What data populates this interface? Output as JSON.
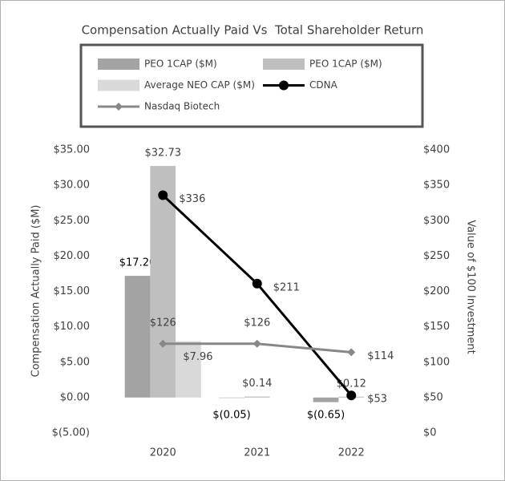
{
  "chart_data": {
    "type": "bar",
    "title": "Compensation Actually Paid Vs  Total Shareholder Return",
    "categories": [
      "2020",
      "2021",
      "2022"
    ],
    "y_label": "Compensation Actually Paid ($M)",
    "y2_label": "Value of $100 Investment",
    "ylim": [
      -5,
      35
    ],
    "yticks": [
      {
        "value": -5,
        "label": "$(5.00)"
      },
      {
        "value": 0,
        "label": "$0.00"
      },
      {
        "value": 5,
        "label": "$5.00"
      },
      {
        "value": 10,
        "label": "$10.00"
      },
      {
        "value": 15,
        "label": "$15.00"
      },
      {
        "value": 20,
        "label": "$20.00"
      },
      {
        "value": 25,
        "label": "$25.00"
      },
      {
        "value": 30,
        "label": "$30.00"
      },
      {
        "value": 35,
        "label": "$35.00"
      }
    ],
    "y2lim": [
      0,
      400
    ],
    "y2ticks": [
      {
        "value": 0,
        "label": "$0"
      },
      {
        "value": 50,
        "label": "$50"
      },
      {
        "value": 100,
        "label": "$100"
      },
      {
        "value": 150,
        "label": "$150"
      },
      {
        "value": 200,
        "label": "$200"
      },
      {
        "value": 250,
        "label": "$250"
      },
      {
        "value": 300,
        "label": "$300"
      },
      {
        "value": 350,
        "label": "$350"
      },
      {
        "value": 400,
        "label": "$400"
      }
    ],
    "grid": false,
    "series": [
      {
        "name": "PEO 1CAP ($M)",
        "type": "bar",
        "color": "#a3a3a3",
        "values": [
          17.2,
          -0.05,
          -0.65
        ],
        "value_labels": [
          "$17.20",
          "$(0.05)",
          "$(0.65)"
        ]
      },
      {
        "name": "PEO 1CAP ($M)",
        "type": "bar",
        "color": "#bfbfbf",
        "values": [
          32.73,
          0.14,
          0.12
        ],
        "value_labels": [
          "$32.73",
          "$0.14",
          "$0.12"
        ]
      },
      {
        "name": "Average NEO CAP ($M)",
        "type": "bar",
        "color": "#d9d9d9",
        "values": [
          7.96,
          null,
          null
        ],
        "value_labels": [
          "$7.96",
          null,
          null
        ]
      },
      {
        "name": "CDNA",
        "type": "line",
        "axis": "y2",
        "color": "#000000",
        "values": [
          336,
          211,
          53
        ],
        "value_labels": [
          "$336",
          "$211",
          "$53"
        ]
      },
      {
        "name": "Nasdaq Biotech",
        "type": "line",
        "axis": "y2",
        "color": "#888888",
        "values": [
          126,
          126,
          114
        ],
        "value_labels": [
          "$126",
          "$126",
          "$114"
        ]
      }
    ]
  }
}
